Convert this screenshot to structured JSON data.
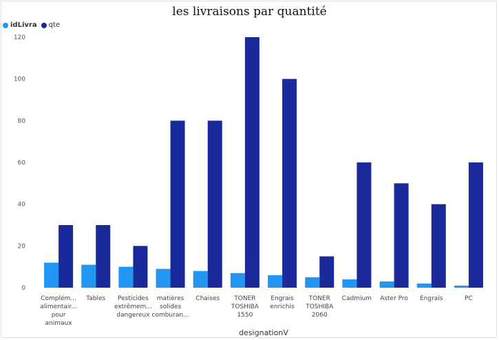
{
  "title": "les livraisons par quantité",
  "legend": [
    {
      "name": "idLivra",
      "color": "#2196f3"
    },
    {
      "name": "qte",
      "color": "#1a2a9a"
    }
  ],
  "chart_data": {
    "type": "bar",
    "title": "les livraisons par quantité",
    "xlabel": "designationV",
    "ylabel": "",
    "ylim": [
      0,
      120
    ],
    "yticks": [
      0,
      20,
      40,
      60,
      80,
      100,
      120
    ],
    "grid": false,
    "legend_position": "top-left",
    "categories": [
      [
        "Complém...",
        "alimentair...",
        "pour",
        "animaux"
      ],
      [
        "Tables"
      ],
      [
        "Pesticides",
        "extrêmem...",
        "dangereux"
      ],
      [
        "matières",
        "solides",
        "comburan..."
      ],
      [
        "Chaises"
      ],
      [
        "TONER",
        "TOSHIBA",
        "1550"
      ],
      [
        "Engrais",
        "enrichis"
      ],
      [
        "TONER",
        "TOSHIBA",
        "2060"
      ],
      [
        "Cadmium"
      ],
      [
        "Aster Pro"
      ],
      [
        "Engrais"
      ],
      [
        "PC"
      ]
    ],
    "series": [
      {
        "name": "idLivra",
        "color": "#2196f3",
        "values": [
          12,
          11,
          10,
          9,
          8,
          7,
          6,
          5,
          4,
          3,
          2,
          1
        ]
      },
      {
        "name": "qte",
        "color": "#1a2a9a",
        "values": [
          30,
          30,
          20,
          80,
          80,
          120,
          100,
          15,
          60,
          50,
          40,
          60
        ]
      }
    ]
  }
}
